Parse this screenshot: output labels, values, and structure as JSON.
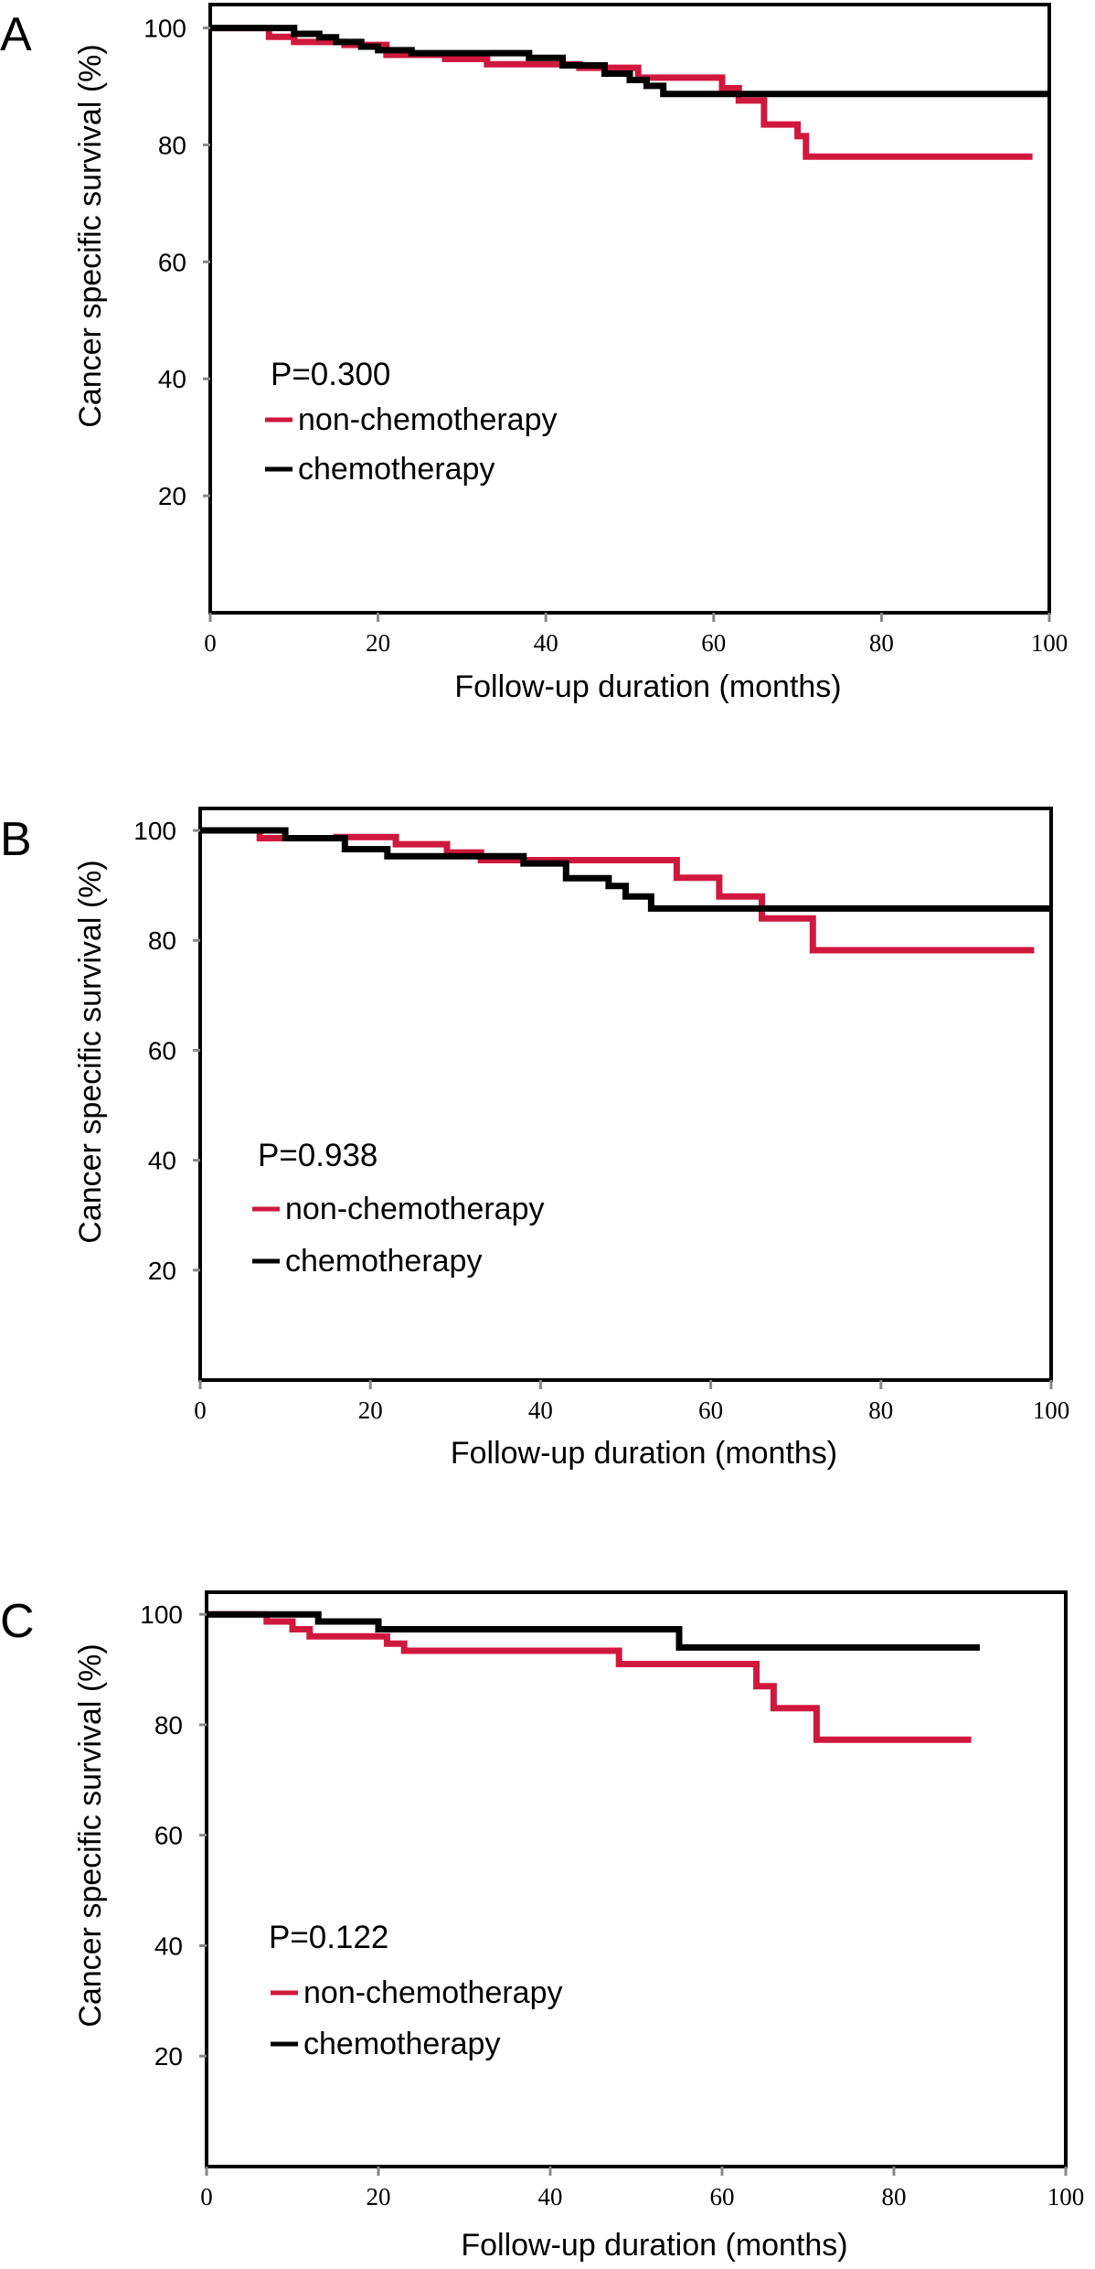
{
  "colors": {
    "non_chemotherapy": "#d0183f",
    "chemotherapy": "#000000",
    "axis": "#000000",
    "background": "#ffffff"
  },
  "chart_data": [
    {
      "type": "line",
      "panel_label": "A",
      "xlabel": "Follow-up duration (months)",
      "ylabel": "Cancer specific survival (%)",
      "xlim": [
        0,
        100
      ],
      "ylim": [
        0,
        104
      ],
      "x_ticks": [
        0,
        20,
        40,
        60,
        80,
        100
      ],
      "x_tick_labels": [
        "0",
        "20",
        "40",
        "60",
        "80",
        "100"
      ],
      "y_ticks": [
        20,
        40,
        60,
        80,
        100
      ],
      "y_tick_labels": [
        "20",
        "40",
        "60",
        "80",
        "100"
      ],
      "annotation": "P=0.300",
      "legend_position": "left",
      "series": [
        {
          "name": "non-chemotherapy",
          "color_key": "non_chemotherapy",
          "points": [
            [
              0,
              100
            ],
            [
              7,
              100
            ],
            [
              7,
              98.5
            ],
            [
              10,
              98.5
            ],
            [
              10,
              97.6
            ],
            [
              16,
              97.6
            ],
            [
              16,
              97.1
            ],
            [
              21,
              97.1
            ],
            [
              21,
              95.4
            ],
            [
              28,
              95.4
            ],
            [
              28,
              94.7
            ],
            [
              33,
              94.7
            ],
            [
              33,
              93.8
            ],
            [
              44,
              93.8
            ],
            [
              44,
              93.2
            ],
            [
              51,
              93.2
            ],
            [
              51,
              91.5
            ],
            [
              61,
              91.5
            ],
            [
              61,
              89.7
            ],
            [
              63,
              89.7
            ],
            [
              63,
              87.6
            ],
            [
              66,
              87.6
            ],
            [
              66,
              83.5
            ],
            [
              70,
              83.5
            ],
            [
              70,
              81.5
            ],
            [
              71,
              81.5
            ],
            [
              71,
              78
            ],
            [
              98,
              78
            ]
          ]
        },
        {
          "name": "chemotherapy",
          "color_key": "chemotherapy",
          "points": [
            [
              0,
              100
            ],
            [
              10,
              100
            ],
            [
              10,
              99
            ],
            [
              13,
              99
            ],
            [
              13,
              98.4
            ],
            [
              15,
              98.4
            ],
            [
              15,
              97.6
            ],
            [
              18,
              97.6
            ],
            [
              18,
              96.8
            ],
            [
              20,
              96.8
            ],
            [
              20,
              96.2
            ],
            [
              24,
              96.2
            ],
            [
              24,
              95.7
            ],
            [
              38,
              95.7
            ],
            [
              38,
              94.9
            ],
            [
              42,
              94.9
            ],
            [
              42,
              93.6
            ],
            [
              47,
              93.6
            ],
            [
              47,
              92.2
            ],
            [
              50,
              92.2
            ],
            [
              50,
              91.1
            ],
            [
              52,
              91.1
            ],
            [
              52,
              90.1
            ],
            [
              54,
              90.1
            ],
            [
              54,
              88.7
            ],
            [
              100,
              88.7
            ]
          ]
        }
      ]
    },
    {
      "type": "line",
      "panel_label": "B",
      "xlabel": "Follow-up duration (months)",
      "ylabel": "Cancer specific survival (%)",
      "xlim": [
        0,
        100
      ],
      "ylim": [
        0,
        104
      ],
      "x_ticks": [
        0,
        20,
        40,
        60,
        80,
        100
      ],
      "x_tick_labels": [
        "0",
        "20",
        "40",
        "60",
        "80",
        "100"
      ],
      "y_ticks": [
        20,
        40,
        60,
        80,
        100
      ],
      "y_tick_labels": [
        "20",
        "40",
        "60",
        "80",
        "100"
      ],
      "annotation": "P=0.938",
      "legend_position": "left",
      "series": [
        {
          "name": "non-chemotherapy",
          "color_key": "non_chemotherapy",
          "points": [
            [
              0,
              100
            ],
            [
              7,
              100
            ],
            [
              7,
              98.6
            ],
            [
              16,
              98.6
            ],
            [
              16,
              98.8
            ],
            [
              23,
              98.8
            ],
            [
              23,
              97.5
            ],
            [
              29,
              97.5
            ],
            [
              29,
              96
            ],
            [
              33,
              96
            ],
            [
              33,
              94.6
            ],
            [
              56,
              94.6
            ],
            [
              56,
              91.4
            ],
            [
              61,
              91.4
            ],
            [
              61,
              88
            ],
            [
              66,
              88
            ],
            [
              66,
              84
            ],
            [
              72,
              84
            ],
            [
              72,
              78.2
            ],
            [
              98,
              78.2
            ]
          ]
        },
        {
          "name": "chemotherapy",
          "color_key": "chemotherapy",
          "points": [
            [
              0,
              100
            ],
            [
              10,
              100
            ],
            [
              10,
              98.6
            ],
            [
              17,
              98.6
            ],
            [
              17,
              96.6
            ],
            [
              22,
              96.6
            ],
            [
              22,
              95.3
            ],
            [
              38,
              95.3
            ],
            [
              38,
              94
            ],
            [
              43,
              94
            ],
            [
              43,
              91.3
            ],
            [
              48,
              91.3
            ],
            [
              48,
              89.9
            ],
            [
              50,
              89.9
            ],
            [
              50,
              88
            ],
            [
              53,
              88
            ],
            [
              53,
              85.8
            ],
            [
              100,
              85.8
            ]
          ]
        }
      ]
    },
    {
      "type": "line",
      "panel_label": "C",
      "xlabel": "Follow-up duration (months)",
      "ylabel": "Cancer specific survival (%)",
      "xlim": [
        0,
        100
      ],
      "ylim": [
        0,
        104
      ],
      "x_ticks": [
        0,
        20,
        40,
        60,
        80,
        100
      ],
      "x_tick_labels": [
        "0",
        "20",
        "40",
        "60",
        "80",
        "100"
      ],
      "y_ticks": [
        20,
        40,
        60,
        80,
        100
      ],
      "y_tick_labels": [
        "20",
        "40",
        "60",
        "80",
        "100"
      ],
      "annotation": "P=0.122",
      "legend_position": "left",
      "series": [
        {
          "name": "non-chemotherapy",
          "color_key": "non_chemotherapy",
          "points": [
            [
              0,
              100
            ],
            [
              7,
              100
            ],
            [
              7,
              98.7
            ],
            [
              10,
              98.7
            ],
            [
              10,
              97.3
            ],
            [
              12,
              97.3
            ],
            [
              12,
              96
            ],
            [
              21,
              96
            ],
            [
              21,
              94.7
            ],
            [
              23,
              94.7
            ],
            [
              23,
              93.4
            ],
            [
              48,
              93.4
            ],
            [
              48,
              91
            ],
            [
              64,
              91
            ],
            [
              64,
              87
            ],
            [
              66,
              87
            ],
            [
              66,
              83
            ],
            [
              71,
              83
            ],
            [
              71,
              77.3
            ],
            [
              89,
              77.3
            ]
          ]
        },
        {
          "name": "chemotherapy",
          "color_key": "chemotherapy",
          "points": [
            [
              0,
              100
            ],
            [
              13,
              100
            ],
            [
              13,
              98.7
            ],
            [
              20,
              98.7
            ],
            [
              20,
              97.3
            ],
            [
              55,
              97.3
            ],
            [
              55,
              94
            ],
            [
              90,
              94
            ]
          ]
        }
      ]
    }
  ]
}
